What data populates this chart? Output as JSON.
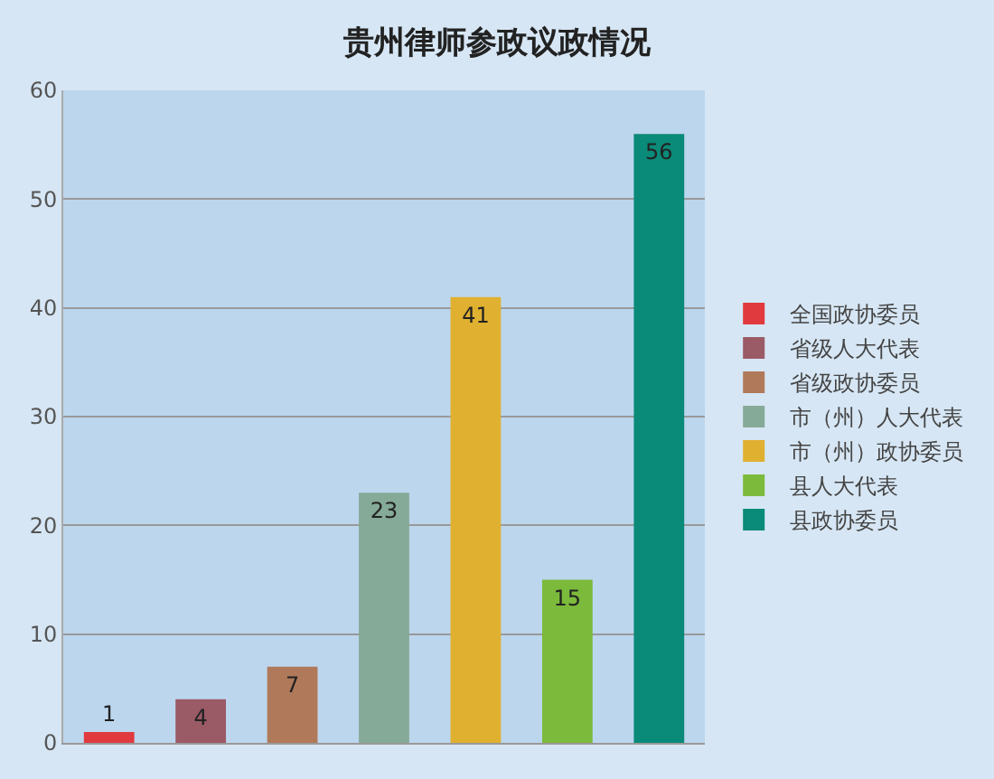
{
  "chart_data": {
    "type": "bar",
    "title": "贵州律师参政议政情况",
    "categories": [
      null,
      null,
      null,
      null,
      null,
      null,
      null
    ],
    "series": [
      {
        "name": "全国政协委员",
        "color": "#e03a3e",
        "values": [
          1,
          null,
          null,
          null,
          null,
          null,
          null
        ]
      },
      {
        "name": "省级人大代表",
        "color": "#9a5a66",
        "values": [
          null,
          4,
          null,
          null,
          null,
          null,
          null
        ]
      },
      {
        "name": "省级政协委员",
        "color": "#b07a5a",
        "values": [
          null,
          null,
          7,
          null,
          null,
          null,
          null
        ]
      },
      {
        "name": "市（州）人大代表",
        "color": "#86aa98",
        "values": [
          null,
          null,
          null,
          23,
          null,
          null,
          null
        ]
      },
      {
        "name": "市（州）政协委员",
        "color": "#e0b030",
        "values": [
          null,
          null,
          null,
          null,
          41,
          null,
          null
        ]
      },
      {
        "name": "县人大代表",
        "color": "#7cba3c",
        "values": [
          null,
          null,
          null,
          null,
          null,
          15,
          null
        ]
      },
      {
        "name": "县政协委员",
        "color": "#0a8a78",
        "values": [
          null,
          null,
          null,
          null,
          null,
          null,
          56
        ]
      }
    ],
    "ylim": [
      0,
      60
    ],
    "yticks": [
      0,
      10,
      20,
      30,
      40,
      50,
      60
    ],
    "grid": "y",
    "legend": "right",
    "data_labels": true
  }
}
